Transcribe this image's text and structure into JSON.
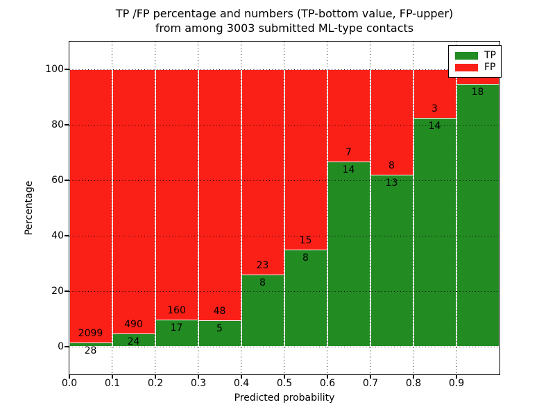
{
  "chart_data": {
    "type": "bar",
    "stacked": true,
    "normalized_to_percent": true,
    "title_lines": [
      "TP /FP percentage and numbers (TP-bottom value, FP-upper)",
      "from among 3003 submitted ML-type contacts"
    ],
    "xlabel": "Predicted probability",
    "ylabel": "Percentage",
    "total_contacts": 3003,
    "xlim": [
      0.0,
      1.0
    ],
    "ylim": [
      -10,
      110
    ],
    "grid": {
      "on": true,
      "style": "dotted",
      "color": "#000000"
    },
    "x_tick_labels": [
      "0.0",
      "0.1",
      "0.2",
      "0.3",
      "0.4",
      "0.5",
      "0.6",
      "0.7",
      "0.8",
      "0.9"
    ],
    "y_tick_labels": [
      "0",
      "20",
      "40",
      "60",
      "80",
      "100"
    ],
    "bin_width": 0.1,
    "bins": [
      {
        "range": "0.0-0.1",
        "tp_count": 28,
        "fp_count": 2099,
        "tp_pct": 1.32,
        "fp_pct": 98.68,
        "tp_label": "28",
        "fp_label": "2099"
      },
      {
        "range": "0.1-0.2",
        "tp_count": 24,
        "fp_count": 490,
        "tp_pct": 4.67,
        "fp_pct": 95.33,
        "tp_label": "24",
        "fp_label": "490"
      },
      {
        "range": "0.2-0.3",
        "tp_count": 17,
        "fp_count": 160,
        "tp_pct": 9.6,
        "fp_pct": 90.4,
        "tp_label": "17",
        "fp_label": "160"
      },
      {
        "range": "0.3-0.4",
        "tp_count": 5,
        "fp_count": 48,
        "tp_pct": 9.43,
        "fp_pct": 90.57,
        "tp_label": "5",
        "fp_label": "48"
      },
      {
        "range": "0.4-0.5",
        "tp_count": 8,
        "fp_count": 23,
        "tp_pct": 25.81,
        "fp_pct": 74.19,
        "tp_label": "8",
        "fp_label": "23"
      },
      {
        "range": "0.5-0.6",
        "tp_count": 8,
        "fp_count": 15,
        "tp_pct": 34.78,
        "fp_pct": 65.22,
        "tp_label": "8",
        "fp_label": "15"
      },
      {
        "range": "0.6-0.7",
        "tp_count": 14,
        "fp_count": 7,
        "tp_pct": 66.67,
        "fp_pct": 33.33,
        "tp_label": "14",
        "fp_label": "7"
      },
      {
        "range": "0.7-0.8",
        "tp_count": 13,
        "fp_count": 8,
        "tp_pct": 61.9,
        "fp_pct": 38.1,
        "tp_label": "13",
        "fp_label": "8"
      },
      {
        "range": "0.8-0.9",
        "tp_count": 14,
        "fp_count": 3,
        "tp_pct": 82.35,
        "fp_pct": 17.65,
        "tp_label": "14",
        "fp_label": "3"
      },
      {
        "range": "0.9-1.0",
        "tp_count": 18,
        "fp_count": null,
        "tp_pct": 94.74,
        "fp_pct": 5.26,
        "tp_label": "18",
        "fp_label": ""
      }
    ],
    "legend": {
      "position": "upper right",
      "entries": [
        {
          "label": "TP",
          "color": "#228b22"
        },
        {
          "label": "FP",
          "color": "#fb2017"
        }
      ]
    },
    "colors": {
      "tp": "#228b22",
      "fp": "#fb2017",
      "bar_edge": "#ffffff",
      "background": "#ffffff"
    }
  }
}
